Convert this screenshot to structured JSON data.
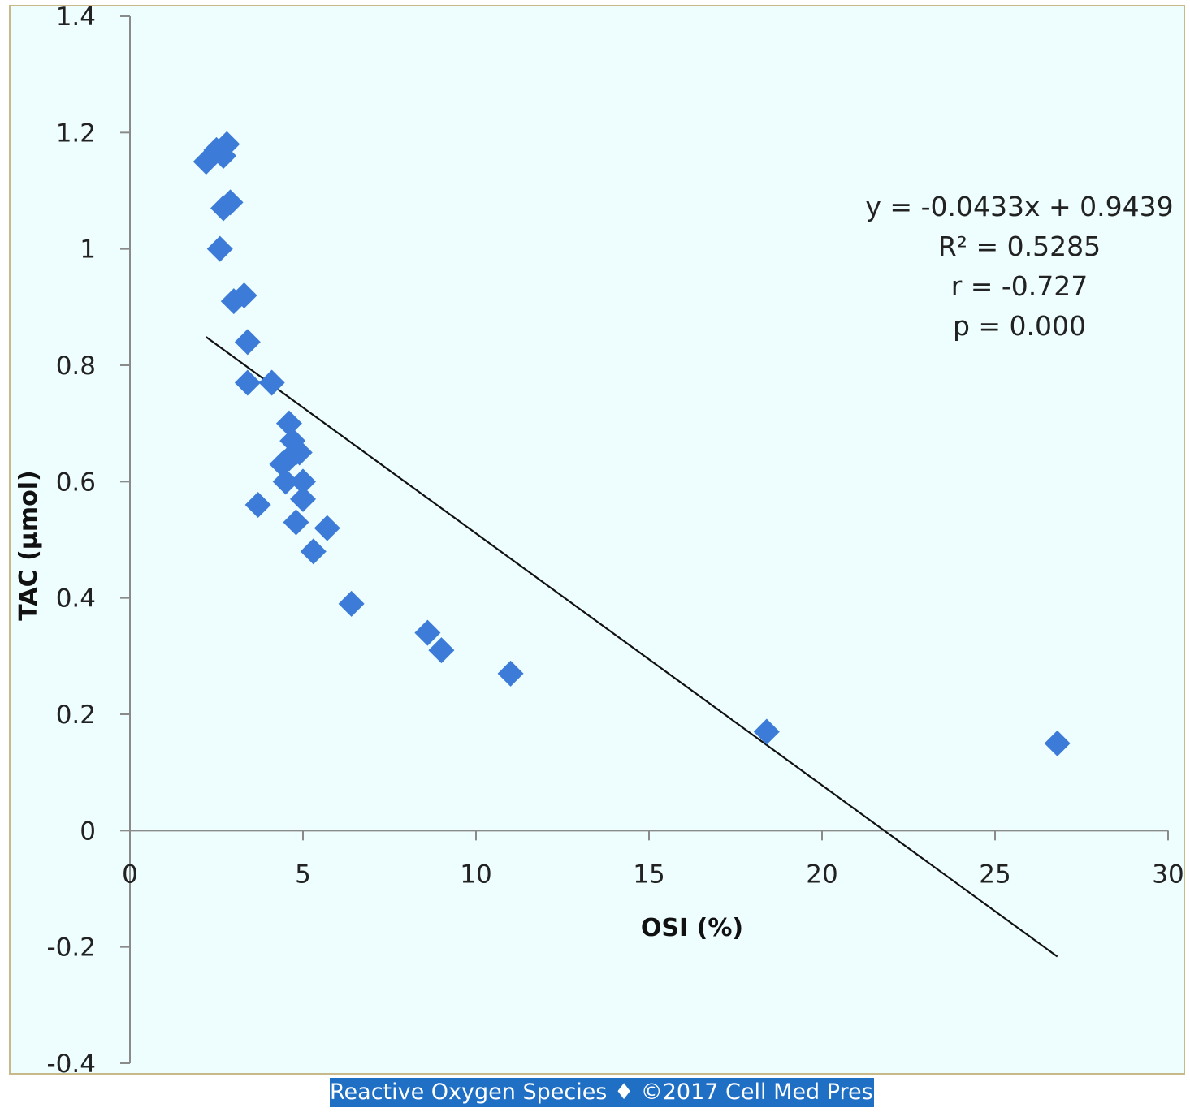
{
  "chart_data": {
    "type": "scatter",
    "xlabel": "OSI (%)",
    "ylabel": "TAC (μmol)",
    "xlim": [
      0,
      30
    ],
    "ylim": [
      -0.4,
      1.4
    ],
    "x_ticks": [
      "0",
      "5",
      "10",
      "15",
      "20",
      "25",
      "30"
    ],
    "y_ticks": [
      "1.4",
      "1.2",
      "1",
      "0.8",
      "0.6",
      "0.4",
      "0.2",
      "0",
      "-0.2",
      "-0.4"
    ],
    "grid": false,
    "marker": "diamond",
    "marker_color": "#3d7bd9",
    "points": [
      {
        "x": 2.2,
        "y": 1.15
      },
      {
        "x": 2.5,
        "y": 1.17
      },
      {
        "x": 2.7,
        "y": 1.16
      },
      {
        "x": 2.8,
        "y": 1.18
      },
      {
        "x": 2.7,
        "y": 1.07
      },
      {
        "x": 2.9,
        "y": 1.08
      },
      {
        "x": 2.6,
        "y": 1.0
      },
      {
        "x": 3.0,
        "y": 0.91
      },
      {
        "x": 3.3,
        "y": 0.92
      },
      {
        "x": 3.4,
        "y": 0.84
      },
      {
        "x": 3.4,
        "y": 0.77
      },
      {
        "x": 4.1,
        "y": 0.77
      },
      {
        "x": 4.6,
        "y": 0.7
      },
      {
        "x": 4.7,
        "y": 0.67
      },
      {
        "x": 4.8,
        "y": 0.65
      },
      {
        "x": 4.9,
        "y": 0.65
      },
      {
        "x": 4.6,
        "y": 0.64
      },
      {
        "x": 4.4,
        "y": 0.63
      },
      {
        "x": 4.5,
        "y": 0.6
      },
      {
        "x": 5.0,
        "y": 0.6
      },
      {
        "x": 5.0,
        "y": 0.57
      },
      {
        "x": 3.7,
        "y": 0.56
      },
      {
        "x": 4.8,
        "y": 0.53
      },
      {
        "x": 5.7,
        "y": 0.52
      },
      {
        "x": 5.3,
        "y": 0.48
      },
      {
        "x": 6.4,
        "y": 0.39
      },
      {
        "x": 8.6,
        "y": 0.34
      },
      {
        "x": 9.0,
        "y": 0.31
      },
      {
        "x": 11.0,
        "y": 0.27
      },
      {
        "x": 18.4,
        "y": 0.17
      },
      {
        "x": 26.8,
        "y": 0.15
      }
    ],
    "trendline": {
      "slope": -0.0433,
      "intercept": 0.9439,
      "x_range": [
        2.2,
        26.8
      ],
      "color": "#111111"
    },
    "annotations": [
      "y = -0.0433x + 0.9439",
      "R² = 0.5285",
      "r = -0.727",
      "p = 0.000"
    ]
  },
  "footer": {
    "text": "Reactive Oxygen Species ♦ ©2017 Cell Med Press",
    "color": "#1f6fc5"
  }
}
